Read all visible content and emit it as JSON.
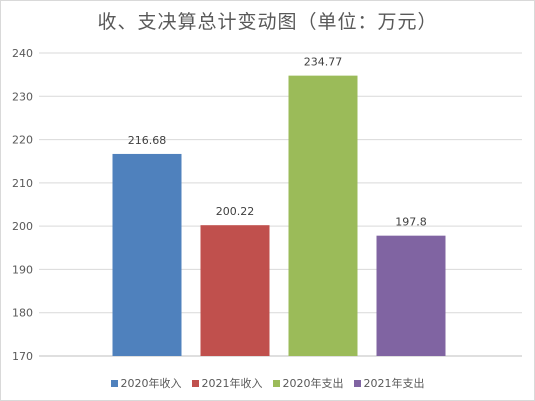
{
  "chart_data": {
    "type": "bar",
    "title": "收、支决算总计变动图（单位：万元）",
    "categories": [
      "2020年收入",
      "2021年收入",
      "2020年支出",
      "2021年支出"
    ],
    "values": [
      216.68,
      200.22,
      234.77,
      197.8
    ],
    "value_labels": [
      "216.68",
      "200.22",
      "234.77",
      "197.8"
    ],
    "colors": [
      "#4f81bd",
      "#c0504d",
      "#9bbb59",
      "#8064a2"
    ],
    "ylim": [
      170,
      240
    ],
    "yticks": [
      170,
      180,
      190,
      200,
      210,
      220,
      230,
      240
    ],
    "grid": true,
    "legend": "bottom",
    "xlabel": "",
    "ylabel": ""
  }
}
